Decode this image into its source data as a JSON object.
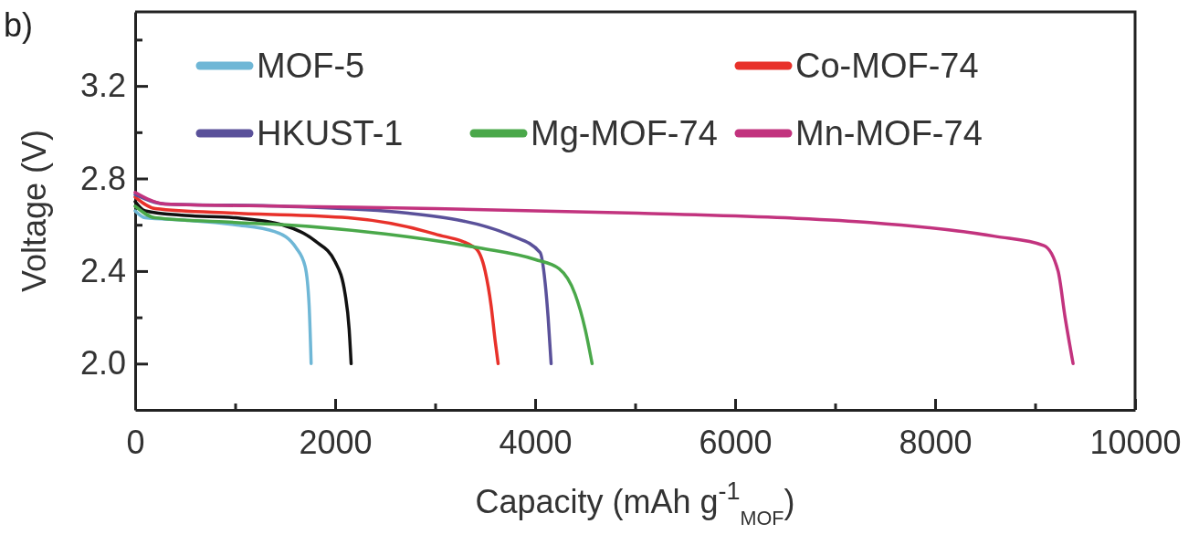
{
  "chart_data": {
    "type": "line",
    "xlabel": "Capacity (mAh g$^{-1}$$_{MOF}$)",
    "ylabel": "Voltage (V)",
    "annotations": [
      "b)"
    ],
    "xlim": [
      0,
      10000
    ],
    "xticks": [
      0,
      {
        "value": 1000,
        "label": null
      },
      2000,
      {
        "value": 3000,
        "label": null
      },
      4000,
      {
        "value": 5000,
        "label": null
      },
      6000,
      {
        "value": 7000,
        "label": null
      },
      8000,
      {
        "value": 9000,
        "label": null
      },
      10000
    ],
    "ylim": [
      1.8,
      3.52
    ],
    "yticks": [
      {
        "value": 2.0,
        "label": "2.0"
      },
      {
        "value": 2.2,
        "label": null
      },
      2.4,
      {
        "value": 2.6,
        "label": null
      },
      2.8,
      {
        "value": 3.0,
        "label": null
      },
      3.2,
      {
        "value": 3.4,
        "label": null
      }
    ],
    "grid": false,
    "legend": "top",
    "marker": "none",
    "line_style": "solid",
    "series": [
      {
        "name": "MOF-5",
        "color": "#6fb7d6",
        "x": [
          0,
          100,
          500,
          1000,
          1400,
          1610,
          1700,
          1740,
          1760
        ],
        "values": [
          2.66,
          2.63,
          2.62,
          2.6,
          2.57,
          2.5,
          2.42,
          2.25,
          2.0
        ]
      },
      {
        "color": "#111111",
        "x": [
          0,
          100,
          500,
          1000,
          1470,
          1800,
          2000,
          2100,
          2140,
          2160
        ],
        "values": [
          2.7,
          2.66,
          2.64,
          2.63,
          2.6,
          2.53,
          2.44,
          2.3,
          2.15,
          2.0
        ]
      },
      {
        "name": "Co-MOF-74",
        "color": "#e8312a",
        "x": [
          0,
          200,
          1000,
          2130,
          3000,
          3400,
          3500,
          3560,
          3600,
          3630
        ],
        "values": [
          2.72,
          2.67,
          2.65,
          2.63,
          2.56,
          2.5,
          2.4,
          2.25,
          2.1,
          2.0
        ]
      },
      {
        "name": "HKUST-1",
        "color": "#5a519a",
        "x": [
          0,
          300,
          1500,
          2730,
          3780,
          4050,
          4100,
          4130,
          4160
        ],
        "values": [
          2.73,
          2.69,
          2.68,
          2.65,
          2.55,
          2.48,
          2.35,
          2.2,
          2.0
        ]
      },
      {
        "name": "Mg-MOF-74",
        "color": "#4aa84a",
        "x": [
          0,
          200,
          1000,
          1500,
          2500,
          3440,
          4000,
          4240,
          4400,
          4500,
          4570
        ],
        "values": [
          2.68,
          2.63,
          2.61,
          2.6,
          2.56,
          2.5,
          2.45,
          2.41,
          2.3,
          2.15,
          2.0
        ]
      },
      {
        "name": "Mn-MOF-74",
        "color": "#c2337e",
        "x": [
          0,
          300,
          1500,
          3000,
          5030,
          6500,
          7350,
          8600,
          9090,
          9230,
          9300,
          9380
        ],
        "values": [
          2.74,
          2.69,
          2.68,
          2.67,
          2.65,
          2.63,
          2.61,
          2.55,
          2.51,
          2.4,
          2.2,
          2.0
        ]
      }
    ]
  }
}
